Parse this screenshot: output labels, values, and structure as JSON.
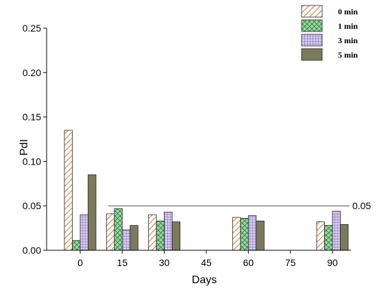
{
  "chart_data": {
    "type": "bar",
    "title": "",
    "xlabel": "Days",
    "ylabel": "PdI",
    "categories": [
      "0",
      "15",
      "30",
      "45",
      "60",
      "75",
      "90"
    ],
    "ylim": [
      0.0,
      0.25
    ],
    "yticks": [
      "0.00",
      "0.05",
      "0.10",
      "0.15",
      "0.20",
      "0.25"
    ],
    "grid": false,
    "legend_position": "top-right",
    "series": [
      {
        "name": "0 min",
        "pattern": "diagonal-hatch",
        "color": "#e8a070",
        "values": [
          0.135,
          0.041,
          0.04,
          null,
          0.037,
          null,
          0.032
        ]
      },
      {
        "name": "1 min",
        "pattern": "cross-hatch",
        "color": "#8fd09a",
        "values": [
          0.011,
          0.047,
          0.033,
          null,
          0.036,
          null,
          0.028
        ]
      },
      {
        "name": "3 min",
        "pattern": "grid",
        "color": "#c7b7e8",
        "values": [
          0.04,
          0.023,
          0.043,
          null,
          0.039,
          null,
          0.044
        ]
      },
      {
        "name": "5 min",
        "pattern": "solid",
        "color": "#7c7a5c",
        "values": [
          0.085,
          0.028,
          0.032,
          null,
          0.033,
          null,
          0.029
        ]
      }
    ],
    "reference_line": {
      "value": 0.05,
      "label": "0.05"
    }
  }
}
